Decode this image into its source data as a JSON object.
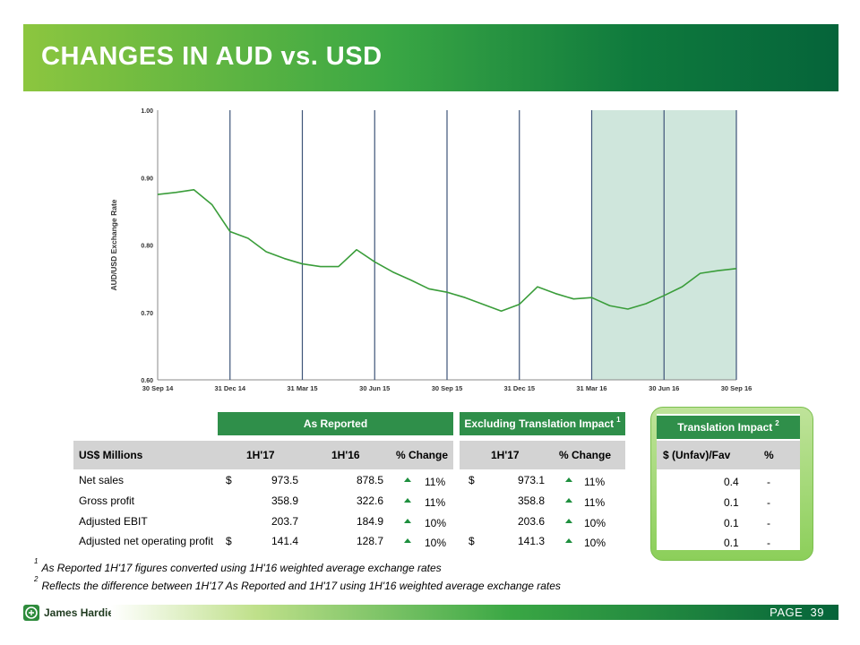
{
  "title": "CHANGES IN AUD vs. USD",
  "chart_data": {
    "type": "line",
    "ylabel": "AUD/USD Exchange Rate",
    "xlabel": "",
    "ylim": [
      0.6,
      1.0
    ],
    "yticks": [
      "1.00",
      "0.90",
      "0.80",
      "0.70",
      "0.60"
    ],
    "xticks": [
      "30 Sep 14",
      "31 Dec 14",
      "31 Mar 15",
      "30 Jun 15",
      "30 Sep 15",
      "31 Dec 15",
      "31 Mar 16",
      "30 Jun 16",
      "30 Sep 16"
    ],
    "highlight_range": [
      "31 Mar 16",
      "30 Sep 16"
    ],
    "line_color": "#3a9d3a",
    "highlight_color": "#cfe6dc",
    "series": [
      {
        "x": [
          0,
          0.25,
          0.5,
          0.75,
          1,
          1.25,
          1.5,
          1.75,
          2,
          2.25,
          2.5,
          2.75,
          3,
          3.25,
          3.5,
          3.75,
          4,
          4.25,
          4.5,
          4.75,
          5,
          5.25,
          5.5,
          5.75,
          6,
          6.25,
          6.5,
          6.75,
          7,
          7.25,
          7.5,
          7.75,
          8
        ],
        "values": [
          0.875,
          0.878,
          0.882,
          0.86,
          0.82,
          0.81,
          0.79,
          0.78,
          0.772,
          0.768,
          0.768,
          0.793,
          0.775,
          0.76,
          0.748,
          0.735,
          0.73,
          0.722,
          0.712,
          0.702,
          0.712,
          0.738,
          0.728,
          0.72,
          0.722,
          0.71,
          0.705,
          0.713,
          0.725,
          0.738,
          0.758,
          0.762,
          0.765
        ]
      }
    ]
  },
  "table": {
    "group_as_reported": "As Reported",
    "group_excluding": "Excluding Translation Impact",
    "group_excluding_note": "1",
    "group_translation": "Translation Impact",
    "group_translation_note": "2",
    "col_label": "US$ Millions",
    "col_1h17": "1H'17",
    "col_1h16": "1H'16",
    "col_pct": "% Change",
    "col_ex_1h17": "1H'17",
    "col_ex_pct": "% Change",
    "col_unfav": "$ (Unfav)/Fav",
    "col_ti_pct": "%",
    "rows": [
      {
        "label": "Net sales",
        "cur": "$",
        "v17": "973.5",
        "v16": "878.5",
        "pct": "11%",
        "ex_cur": "$",
        "ex17": "973.1",
        "ex_pct": "11%",
        "unfav": "0.4",
        "ti_pct": "-"
      },
      {
        "label": "Gross profit",
        "cur": "",
        "v17": "358.9",
        "v16": "322.6",
        "pct": "11%",
        "ex_cur": "",
        "ex17": "358.8",
        "ex_pct": "11%",
        "unfav": "0.1",
        "ti_pct": "-"
      },
      {
        "label": "Adjusted EBIT",
        "cur": "",
        "v17": "203.7",
        "v16": "184.9",
        "pct": "10%",
        "ex_cur": "",
        "ex17": "203.6",
        "ex_pct": "10%",
        "unfav": "0.1",
        "ti_pct": "-"
      },
      {
        "label": "Adjusted net operating profit",
        "cur": "$",
        "v17": "141.4",
        "v16": "128.7",
        "pct": "10%",
        "ex_cur": "$",
        "ex17": "141.3",
        "ex_pct": "10%",
        "unfav": "0.1",
        "ti_pct": "-"
      }
    ]
  },
  "footnotes": [
    {
      "num": "1",
      "text": "As Reported 1H'17 figures converted using 1H'16 weighted average exchange rates"
    },
    {
      "num": "2",
      "text": "Reflects the difference between 1H'17 As Reported and 1H'17 using 1H'16 weighted average exchange rates"
    }
  ],
  "footer": {
    "logo_text": "James Hardie",
    "page_label": "PAGE",
    "page_number": "39"
  }
}
